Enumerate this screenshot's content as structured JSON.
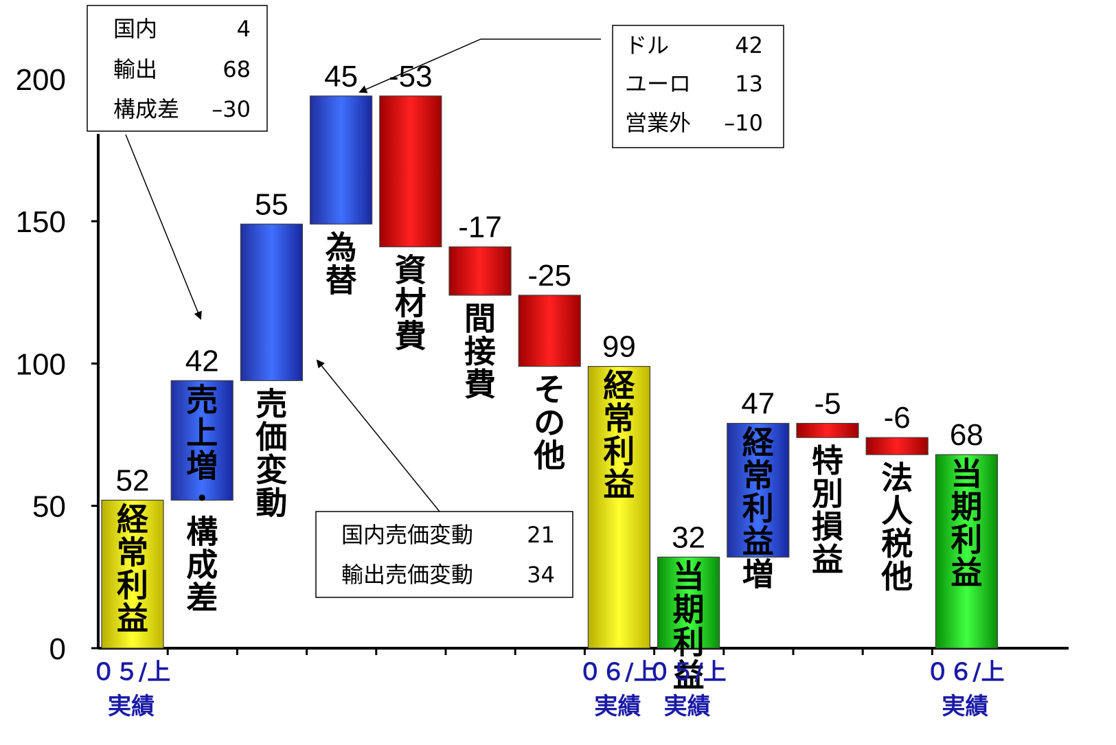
{
  "chart_data": {
    "type": "bar",
    "subtype": "waterfall",
    "ylim": [
      0,
      220
    ],
    "yticks": [
      0,
      50,
      100,
      150,
      200
    ],
    "grid": false,
    "colors": {
      "total": "#f2ea00",
      "increase": "#2040d0",
      "decrease": "#e00000",
      "net": "#20c020"
    },
    "bars": [
      {
        "label": "経常利益",
        "kind": "total",
        "base": 0,
        "top": 52,
        "value_label": "52",
        "label_inside": true
      },
      {
        "label": "売上増・構成差",
        "kind": "increase",
        "base": 52,
        "top": 94,
        "value_label": "42",
        "label_inside": true
      },
      {
        "label": "売価変動",
        "kind": "increase",
        "base": 94,
        "top": 149,
        "value_label": "55",
        "label_inside": false
      },
      {
        "label": "為替",
        "kind": "increase",
        "base": 149,
        "top": 194,
        "value_label": "45",
        "label_inside": false
      },
      {
        "label": "資材費",
        "kind": "decrease",
        "base": 141,
        "top": 194,
        "value_label": "-53",
        "label_inside": false
      },
      {
        "label": "間接費",
        "kind": "decrease",
        "base": 124,
        "top": 141,
        "value_label": "-17",
        "label_inside": false
      },
      {
        "label": "その他",
        "kind": "decrease",
        "base": 99,
        "top": 124,
        "value_label": "-25",
        "label_inside": false
      },
      {
        "label": "経常利益",
        "kind": "total",
        "base": 0,
        "top": 99,
        "value_label": "99",
        "label_inside": true
      },
      {
        "label": "当期利益",
        "kind": "net",
        "base": 0,
        "top": 32,
        "value_label": "32",
        "label_inside": true
      },
      {
        "label": "経常利益増",
        "kind": "increase",
        "base": 32,
        "top": 79,
        "value_label": "47",
        "label_inside": true
      },
      {
        "label": "特別損益",
        "kind": "decrease",
        "base": 74,
        "top": 79,
        "value_label": "-5",
        "label_inside": false
      },
      {
        "label": "法人税他",
        "kind": "decrease",
        "base": 68,
        "top": 74,
        "value_label": "-6",
        "label_inside": false
      },
      {
        "label": "当期利益",
        "kind": "net",
        "base": 0,
        "top": 68,
        "value_label": "68",
        "label_inside": true
      }
    ],
    "period_labels": [
      {
        "line1": "０５/上",
        "line2": "実績",
        "slot": 0
      },
      {
        "line1": "０６/上",
        "line2": "実績",
        "slot": 7
      },
      {
        "line1": "０５/上",
        "line2": "実績",
        "slot": 8
      },
      {
        "line1": "０６/上",
        "line2": "実績",
        "slot": 12
      }
    ],
    "annotations": [
      {
        "name": "annotation-sales-growth",
        "rows": [
          [
            "国内",
            "4"
          ],
          [
            "輸出",
            "68"
          ],
          [
            "構成差",
            "–30"
          ]
        ],
        "points_to_bar": 1
      },
      {
        "name": "annotation-fx",
        "rows": [
          [
            "ドル",
            "42"
          ],
          [
            "ユーロ",
            "13"
          ],
          [
            "営業外",
            "–10"
          ]
        ],
        "points_to_bar": 3
      },
      {
        "name": "annotation-price",
        "rows": [
          [
            "国内売価変動",
            "21"
          ],
          [
            "輸出売価変動",
            "34"
          ]
        ],
        "points_to_bar": 2
      }
    ]
  }
}
